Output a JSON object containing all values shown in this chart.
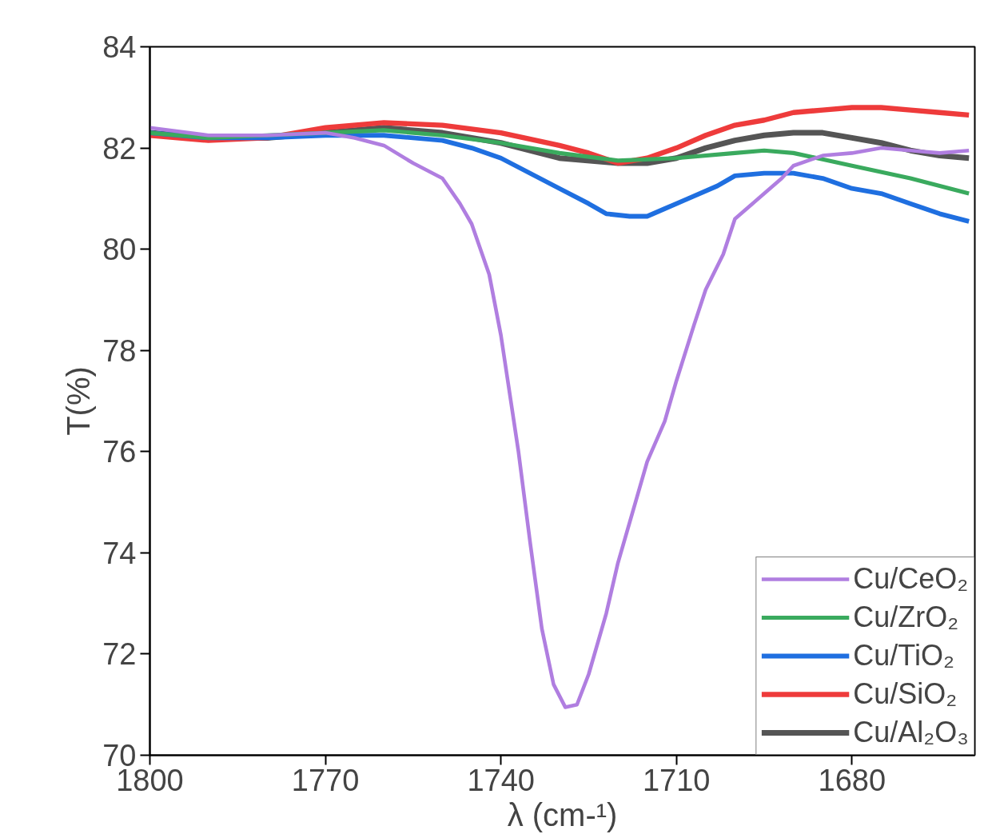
{
  "chart_data": {
    "type": "line",
    "xlabel": "λ (cm-¹)",
    "ylabel": "T(%)",
    "xlim": [
      1800,
      1659
    ],
    "ylim": [
      70,
      84
    ],
    "xticks": [
      1800,
      1770,
      1740,
      1710,
      1680
    ],
    "yticks": [
      70,
      72,
      74,
      76,
      78,
      80,
      82,
      84
    ],
    "grid": false,
    "legend": "bottom right",
    "marker": "none",
    "line_style": "solid",
    "series": [
      {
        "name": "Cu/CeO₂",
        "color": "#b07ee0",
        "x": [
          1800,
          1790,
          1780,
          1770,
          1765,
          1760,
          1755,
          1750,
          1747,
          1745,
          1742,
          1740,
          1737,
          1735,
          1733,
          1731,
          1729,
          1727,
          1725,
          1722,
          1720,
          1717,
          1715,
          1712,
          1710,
          1707,
          1705,
          1702,
          1700,
          1697,
          1695,
          1692,
          1690,
          1685,
          1680,
          1675,
          1670,
          1665,
          1660
        ],
        "values": [
          82.4,
          82.25,
          82.25,
          82.3,
          82.2,
          82.05,
          81.7,
          81.4,
          80.9,
          80.5,
          79.5,
          78.3,
          76.0,
          74.2,
          72.5,
          71.4,
          70.95,
          71.0,
          71.6,
          72.8,
          73.8,
          75.0,
          75.8,
          76.6,
          77.4,
          78.5,
          79.2,
          79.9,
          80.6,
          80.9,
          81.1,
          81.4,
          81.65,
          81.85,
          81.9,
          82.0,
          81.95,
          81.9,
          81.95
        ]
      },
      {
        "name": "Cu/ZrO₂",
        "color": "#3aaa5e",
        "x": [
          1800,
          1790,
          1780,
          1770,
          1760,
          1750,
          1740,
          1730,
          1720,
          1710,
          1700,
          1695,
          1690,
          1680,
          1670,
          1660
        ],
        "values": [
          82.3,
          82.2,
          82.25,
          82.3,
          82.35,
          82.25,
          82.1,
          81.9,
          81.75,
          81.8,
          81.9,
          81.95,
          81.9,
          81.65,
          81.4,
          81.1
        ]
      },
      {
        "name": "Cu/TiO₂",
        "color": "#1f6fe0",
        "x": [
          1800,
          1790,
          1780,
          1770,
          1760,
          1750,
          1745,
          1740,
          1735,
          1730,
          1725,
          1722,
          1718,
          1715,
          1712,
          1708,
          1703,
          1700,
          1695,
          1690,
          1685,
          1680,
          1675,
          1670,
          1665,
          1660
        ],
        "values": [
          82.3,
          82.2,
          82.2,
          82.25,
          82.25,
          82.15,
          82.0,
          81.8,
          81.5,
          81.2,
          80.9,
          80.7,
          80.65,
          80.65,
          80.8,
          81.0,
          81.25,
          81.45,
          81.5,
          81.5,
          81.4,
          81.2,
          81.1,
          80.9,
          80.7,
          80.55
        ]
      },
      {
        "name": "Cu/SiO₂",
        "color": "#ee3b3b",
        "x": [
          1800,
          1790,
          1780,
          1770,
          1760,
          1750,
          1740,
          1730,
          1725,
          1720,
          1715,
          1710,
          1705,
          1700,
          1695,
          1690,
          1685,
          1680,
          1675,
          1670,
          1665,
          1660
        ],
        "values": [
          82.25,
          82.15,
          82.2,
          82.4,
          82.5,
          82.45,
          82.3,
          82.05,
          81.9,
          81.7,
          81.8,
          82.0,
          82.25,
          82.45,
          82.55,
          82.7,
          82.75,
          82.8,
          82.8,
          82.75,
          82.7,
          82.65
        ]
      },
      {
        "name": "Cu/Al₂O₃",
        "color": "#555555",
        "x": [
          1800,
          1790,
          1780,
          1770,
          1760,
          1750,
          1740,
          1730,
          1720,
          1715,
          1710,
          1705,
          1700,
          1695,
          1690,
          1685,
          1680,
          1675,
          1670,
          1665,
          1660
        ],
        "values": [
          82.3,
          82.2,
          82.2,
          82.3,
          82.4,
          82.3,
          82.1,
          81.8,
          81.7,
          81.7,
          81.8,
          82.0,
          82.15,
          82.25,
          82.3,
          82.3,
          82.2,
          82.1,
          81.95,
          81.85,
          81.8
        ]
      }
    ]
  }
}
